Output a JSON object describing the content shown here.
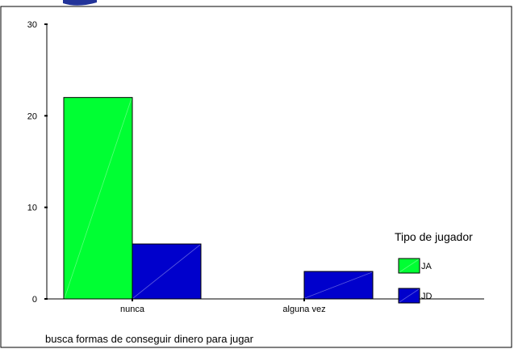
{
  "chart_data": {
    "type": "bar",
    "categories": [
      "nunca",
      "alguna vez"
    ],
    "series": [
      {
        "name": "JA",
        "values": [
          22,
          0
        ],
        "color": "#00ff33"
      },
      {
        "name": "JD",
        "values": [
          6,
          3
        ],
        "color": "#0000cc"
      }
    ],
    "xlabel": "busca formas de conseguir dinero para jugar",
    "ylabel": "",
    "ylim": [
      0,
      30
    ],
    "yticks": [
      0,
      10,
      20,
      30
    ],
    "grid": false,
    "legend": {
      "title": "Tipo de jugador",
      "position": "right"
    }
  }
}
